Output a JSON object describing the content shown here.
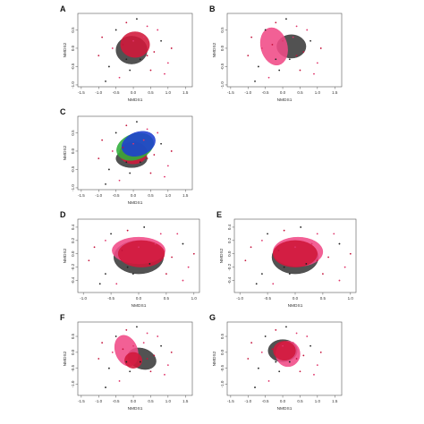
{
  "chart_data": [
    {
      "panel": "A",
      "type": "scatter",
      "xlabel": "NMDS1",
      "ylabel": "NMDS2",
      "xlim": [
        -1.6,
        1.7
      ],
      "ylim": [
        -1.05,
        0.95
      ],
      "xticks": [
        "-1.5",
        "-1.0",
        "-0.5",
        "0.0",
        "0.5",
        "1.0",
        "1.5"
      ],
      "yticks": [
        "-1.0",
        "-0.5",
        "0.0",
        "0.5"
      ],
      "ellipses": [
        {
          "color": "#3a3a3a",
          "cx": -0.05,
          "cy": -0.05,
          "rx": 0.45,
          "ry": 0.38,
          "angle": 0
        },
        {
          "color": "#d1183a",
          "cx": 0.05,
          "cy": 0.1,
          "rx": 0.42,
          "ry": 0.35,
          "angle": 0
        }
      ],
      "points": [
        [
          -0.9,
          0.3
        ],
        [
          -0.7,
          -0.5
        ],
        [
          -0.4,
          -0.8
        ],
        [
          -0.2,
          0.7
        ],
        [
          0.1,
          0.8
        ],
        [
          0.4,
          0.6
        ],
        [
          0.6,
          -0.1
        ],
        [
          0.8,
          0.2
        ],
        [
          1.0,
          -0.4
        ],
        [
          -0.3,
          0.1
        ],
        [
          0.2,
          -0.3
        ],
        [
          -0.6,
          0.0
        ],
        [
          0.5,
          -0.6
        ],
        [
          -0.1,
          -0.6
        ],
        [
          0.3,
          0.3
        ],
        [
          -1.0,
          -0.2
        ],
        [
          -0.8,
          -0.9
        ],
        [
          0.7,
          0.5
        ],
        [
          1.1,
          0.0
        ],
        [
          -0.5,
          0.5
        ],
        [
          0.0,
          0.2
        ],
        [
          0.4,
          -0.2
        ],
        [
          -0.2,
          -0.3
        ],
        [
          0.9,
          -0.7
        ]
      ]
    },
    {
      "panel": "B",
      "type": "scatter",
      "xlabel": "NMDS1",
      "ylabel": "NMDS2",
      "xlim": [
        -1.6,
        1.7
      ],
      "ylim": [
        -1.05,
        0.95
      ],
      "xticks": [
        "-1.5",
        "-1.0",
        "-0.5",
        "0.0",
        "0.5",
        "1.0",
        "1.5"
      ],
      "yticks": [
        "-1.0",
        "-0.5",
        "0.0",
        "0.5"
      ],
      "ellipses": [
        {
          "color": "#3a3a3a",
          "cx": 0.25,
          "cy": 0.05,
          "rx": 0.42,
          "ry": 0.32,
          "angle": 0
        },
        {
          "color": "#f04a86",
          "cx": -0.25,
          "cy": 0.05,
          "rx": 0.38,
          "ry": 0.52,
          "angle": -15
        }
      ],
      "points": [
        [
          -0.9,
          0.3
        ],
        [
          -0.7,
          -0.5
        ],
        [
          -0.4,
          -0.8
        ],
        [
          -0.2,
          0.7
        ],
        [
          0.1,
          0.8
        ],
        [
          0.4,
          0.6
        ],
        [
          0.6,
          -0.1
        ],
        [
          0.8,
          0.2
        ],
        [
          1.0,
          -0.4
        ],
        [
          -0.3,
          0.1
        ],
        [
          0.2,
          -0.3
        ],
        [
          -0.6,
          0.0
        ],
        [
          0.5,
          -0.6
        ],
        [
          -0.1,
          -0.6
        ],
        [
          0.3,
          0.3
        ],
        [
          -1.0,
          -0.2
        ],
        [
          -0.8,
          -0.9
        ],
        [
          0.7,
          0.5
        ],
        [
          1.1,
          0.0
        ],
        [
          -0.5,
          0.5
        ],
        [
          0.0,
          0.2
        ],
        [
          0.4,
          -0.2
        ],
        [
          -0.2,
          -0.3
        ],
        [
          0.9,
          -0.7
        ]
      ]
    },
    {
      "panel": "C",
      "type": "scatter",
      "xlabel": "NMDS1",
      "ylabel": "NMDS2",
      "xlim": [
        -1.6,
        1.7
      ],
      "ylim": [
        -1.05,
        0.95
      ],
      "xticks": [
        "-1.5",
        "-1.0",
        "-0.5",
        "0.0",
        "0.5",
        "1.0",
        "1.5"
      ],
      "yticks": [
        "-1.0",
        "-0.5",
        "0.0",
        "0.5"
      ],
      "ellipses": [
        {
          "color": "#3a3a3a",
          "cx": -0.05,
          "cy": -0.2,
          "rx": 0.45,
          "ry": 0.25,
          "angle": 0
        },
        {
          "color": "#d1183a",
          "cx": 0.0,
          "cy": -0.05,
          "rx": 0.4,
          "ry": 0.3,
          "angle": 0
        },
        {
          "color": "#2fae3a",
          "cx": 0.05,
          "cy": 0.12,
          "rx": 0.55,
          "ry": 0.35,
          "angle": -20
        },
        {
          "color": "#1e3fd0",
          "cx": 0.15,
          "cy": 0.2,
          "rx": 0.5,
          "ry": 0.32,
          "angle": -20
        }
      ],
      "points": [
        [
          -0.9,
          0.3
        ],
        [
          -0.7,
          -0.5
        ],
        [
          -0.4,
          -0.8
        ],
        [
          -0.2,
          0.7
        ],
        [
          0.1,
          0.8
        ],
        [
          0.4,
          0.6
        ],
        [
          0.6,
          -0.1
        ],
        [
          0.8,
          0.2
        ],
        [
          1.0,
          -0.4
        ],
        [
          -0.3,
          0.1
        ],
        [
          0.2,
          -0.3
        ],
        [
          -0.6,
          0.0
        ],
        [
          0.5,
          -0.6
        ],
        [
          -0.1,
          -0.6
        ],
        [
          0.3,
          0.3
        ],
        [
          -1.0,
          -0.2
        ],
        [
          -0.8,
          -0.9
        ],
        [
          0.7,
          0.5
        ],
        [
          1.1,
          0.0
        ],
        [
          -0.5,
          0.5
        ],
        [
          0.0,
          0.2
        ],
        [
          0.4,
          -0.2
        ],
        [
          -0.2,
          -0.3
        ],
        [
          0.9,
          -0.7
        ]
      ]
    },
    {
      "panel": "D",
      "type": "scatter",
      "xlabel": "NMDS1",
      "ylabel": "NMDS2",
      "xlim": [
        -1.1,
        1.1
      ],
      "ylim": [
        -0.58,
        0.52
      ],
      "xticks": [
        "-1.0",
        "-0.5",
        "0.0",
        "0.5",
        "1.0"
      ],
      "yticks": [
        "-0.4",
        "-0.2",
        "0.0",
        "0.2",
        "0.4"
      ],
      "ellipses": [
        {
          "color": "#3a3a3a",
          "cx": 0.0,
          "cy": -0.05,
          "rx": 0.45,
          "ry": 0.25,
          "angle": 0
        },
        {
          "color": "#f04a86",
          "cx": 0.0,
          "cy": 0.05,
          "rx": 0.48,
          "ry": 0.2,
          "angle": 0
        },
        {
          "color": "#d1183a",
          "cx": 0.05,
          "cy": 0.0,
          "rx": 0.42,
          "ry": 0.2,
          "angle": 0
        }
      ],
      "points": [
        [
          -0.8,
          0.1
        ],
        [
          -0.6,
          -0.3
        ],
        [
          -0.4,
          -0.45
        ],
        [
          -0.2,
          0.35
        ],
        [
          0.1,
          0.4
        ],
        [
          0.4,
          0.3
        ],
        [
          0.6,
          -0.05
        ],
        [
          0.8,
          0.15
        ],
        [
          0.9,
          -0.2
        ],
        [
          -0.3,
          0.05
        ],
        [
          0.2,
          -0.15
        ],
        [
          -0.6,
          0.2
        ],
        [
          0.5,
          -0.3
        ],
        [
          -0.1,
          -0.3
        ],
        [
          0.3,
          0.15
        ],
        [
          -0.9,
          -0.1
        ],
        [
          -0.7,
          -0.45
        ],
        [
          0.7,
          0.3
        ],
        [
          1.0,
          0.0
        ],
        [
          -0.5,
          0.3
        ],
        [
          0.0,
          0.1
        ],
        [
          0.4,
          -0.1
        ],
        [
          -0.2,
          -0.2
        ],
        [
          0.8,
          -0.4
        ]
      ]
    },
    {
      "panel": "E",
      "type": "scatter",
      "xlabel": "NMDS1",
      "ylabel": "NMDS2",
      "xlim": [
        -1.1,
        1.1
      ],
      "ylim": [
        -0.58,
        0.52
      ],
      "xticks": [
        "-1.0",
        "-0.5",
        "0.0",
        "0.5",
        "1.0"
      ],
      "yticks": [
        "-0.4",
        "-0.2",
        "0.0",
        "0.2",
        "0.4"
      ],
      "ellipses": [
        {
          "color": "#3a3a3a",
          "cx": 0.0,
          "cy": -0.05,
          "rx": 0.42,
          "ry": 0.25,
          "angle": 0
        },
        {
          "color": "#f04a86",
          "cx": 0.05,
          "cy": 0.03,
          "rx": 0.45,
          "ry": 0.22,
          "angle": 0
        },
        {
          "color": "#d1183a",
          "cx": 0.0,
          "cy": 0.0,
          "rx": 0.4,
          "ry": 0.2,
          "angle": 0
        }
      ],
      "points": [
        [
          -0.8,
          0.1
        ],
        [
          -0.6,
          -0.3
        ],
        [
          -0.4,
          -0.45
        ],
        [
          -0.2,
          0.35
        ],
        [
          0.1,
          0.4
        ],
        [
          0.4,
          0.3
        ],
        [
          0.6,
          -0.05
        ],
        [
          0.8,
          0.15
        ],
        [
          0.9,
          -0.2
        ],
        [
          -0.3,
          0.05
        ],
        [
          0.2,
          -0.15
        ],
        [
          -0.6,
          0.2
        ],
        [
          0.5,
          -0.3
        ],
        [
          -0.1,
          -0.3
        ],
        [
          0.3,
          0.15
        ],
        [
          -0.9,
          -0.1
        ],
        [
          -0.7,
          -0.45
        ],
        [
          0.7,
          0.3
        ],
        [
          1.0,
          0.0
        ],
        [
          -0.5,
          0.3
        ],
        [
          0.0,
          0.1
        ],
        [
          0.4,
          -0.1
        ],
        [
          -0.2,
          -0.2
        ],
        [
          0.8,
          -0.4
        ]
      ]
    },
    {
      "panel": "F",
      "type": "scatter",
      "xlabel": "NMDS1",
      "ylabel": "NMDS2",
      "xlim": [
        -1.6,
        1.7
      ],
      "ylim": [
        -1.35,
        0.95
      ],
      "xticks": [
        "-1.5",
        "-1.0",
        "-0.5",
        "0.0",
        "0.5",
        "1.0",
        "1.5"
      ],
      "yticks": [
        "-1.0",
        "-0.5",
        "0.0",
        "0.5"
      ],
      "ellipses": [
        {
          "color": "#3a3a3a",
          "cx": 0.25,
          "cy": -0.2,
          "rx": 0.42,
          "ry": 0.32,
          "angle": 20
        },
        {
          "color": "#f04a86",
          "cx": -0.2,
          "cy": 0.05,
          "rx": 0.32,
          "ry": 0.5,
          "angle": -20
        },
        {
          "color": "#d1183a",
          "cx": 0.0,
          "cy": -0.25,
          "rx": 0.25,
          "ry": 0.25,
          "angle": 0
        }
      ],
      "points": [
        [
          -0.9,
          0.3
        ],
        [
          -0.7,
          -0.5
        ],
        [
          -0.4,
          -0.9
        ],
        [
          -0.2,
          0.7
        ],
        [
          0.1,
          0.8
        ],
        [
          0.4,
          0.6
        ],
        [
          0.6,
          -0.1
        ],
        [
          0.8,
          0.2
        ],
        [
          1.0,
          -0.4
        ],
        [
          -0.3,
          0.1
        ],
        [
          0.2,
          -0.3
        ],
        [
          -0.6,
          0.0
        ],
        [
          0.5,
          -0.6
        ],
        [
          -0.1,
          -0.6
        ],
        [
          0.3,
          0.3
        ],
        [
          -1.0,
          -0.2
        ],
        [
          -0.8,
          -1.1
        ],
        [
          0.7,
          0.5
        ],
        [
          1.1,
          0.0
        ],
        [
          -0.5,
          0.5
        ],
        [
          0.0,
          0.2
        ],
        [
          0.4,
          -0.2
        ],
        [
          -0.2,
          -0.3
        ],
        [
          0.9,
          -0.7
        ]
      ]
    },
    {
      "panel": "G",
      "type": "scatter",
      "xlabel": "NMDS1",
      "ylabel": "NMDS2",
      "xlim": [
        -1.6,
        1.7
      ],
      "ylim": [
        -1.35,
        0.95
      ],
      "xticks": [
        "-1.5",
        "-1.0",
        "-0.5",
        "0.0",
        "0.5",
        "1.0",
        "1.5"
      ],
      "yticks": [
        "-1.0",
        "-0.5",
        "0.0",
        "0.5"
      ],
      "ellipses": [
        {
          "color": "#3a3a3a",
          "cx": 0.0,
          "cy": 0.05,
          "rx": 0.42,
          "ry": 0.35,
          "angle": 0
        },
        {
          "color": "#f04a86",
          "cx": 0.15,
          "cy": -0.05,
          "rx": 0.35,
          "ry": 0.4,
          "angle": 0
        },
        {
          "color": "#d1183a",
          "cx": 0.05,
          "cy": 0.05,
          "rx": 0.32,
          "ry": 0.3,
          "angle": 0
        }
      ],
      "points": [
        [
          -0.9,
          0.3
        ],
        [
          -0.7,
          -0.5
        ],
        [
          -0.4,
          -0.9
        ],
        [
          -0.2,
          0.7
        ],
        [
          0.1,
          0.8
        ],
        [
          0.4,
          0.6
        ],
        [
          0.6,
          -0.1
        ],
        [
          0.8,
          0.2
        ],
        [
          1.0,
          -0.4
        ],
        [
          -0.3,
          0.1
        ],
        [
          0.2,
          -0.3
        ],
        [
          -0.6,
          0.0
        ],
        [
          0.5,
          -0.6
        ],
        [
          -0.1,
          -0.6
        ],
        [
          0.3,
          0.3
        ],
        [
          -1.0,
          -0.2
        ],
        [
          -0.8,
          -1.1
        ],
        [
          0.7,
          0.5
        ],
        [
          1.1,
          0.0
        ],
        [
          -0.5,
          0.5
        ],
        [
          0.0,
          0.2
        ],
        [
          0.4,
          -0.2
        ],
        [
          -0.2,
          -0.3
        ],
        [
          0.9,
          -0.7
        ]
      ]
    }
  ]
}
